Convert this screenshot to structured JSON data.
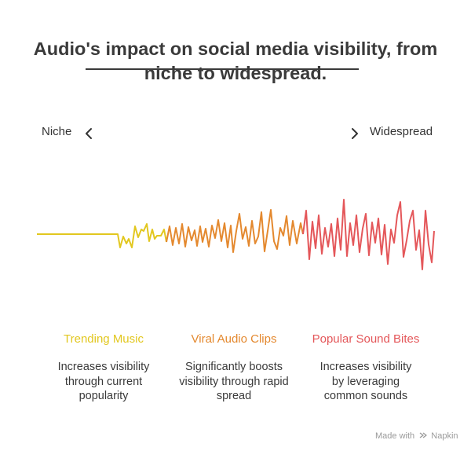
{
  "title": {
    "line1": "Audio's impact on social media visibility, from",
    "line2": "niche to widespread."
  },
  "axis": {
    "left_label": "Niche",
    "right_label": "Widespread"
  },
  "colors": {
    "trending": "#e2c71f",
    "viral": "#e4892f",
    "popular": "#e4575a",
    "text": "#333333"
  },
  "icons": {
    "left": "chevron-left-icon",
    "right": "chevron-right-icon",
    "footer": "napkin-logo-icon"
  },
  "stages": [
    {
      "title": "Trending Music",
      "description": "Increases visibility through current popularity",
      "color": "#e2c71f"
    },
    {
      "title": "Viral Audio Clips",
      "description": "Significantly boosts visibility through rapid spread",
      "color": "#e4892f"
    },
    {
      "title": "Popular Sound Bites",
      "description": "Increases visibility by leveraging common sounds",
      "color": "#e4575a"
    }
  ],
  "footer": {
    "made_with": "Made with",
    "brand": "Napkin"
  }
}
